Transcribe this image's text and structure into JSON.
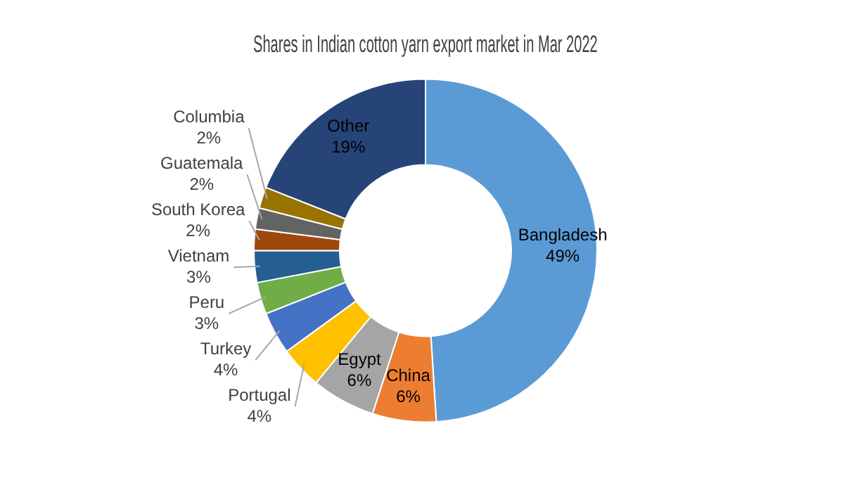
{
  "chart_data": {
    "type": "donut",
    "title": "Shares in Indian cotton yarn export market in Mar 2022",
    "categories": [
      "Bangladesh",
      "China",
      "Egypt",
      "Portugal",
      "Turkey",
      "Peru",
      "Vietnam",
      "South Korea",
      "Guatemala",
      "Columbia",
      "Other"
    ],
    "values": [
      49,
      6,
      6,
      4,
      4,
      3,
      3,
      2,
      2,
      2,
      19
    ],
    "colors": [
      "#5b9bd5",
      "#ed7d31",
      "#a5a5a5",
      "#ffc000",
      "#4472c4",
      "#70ad47",
      "#255e91",
      "#9e480e",
      "#636363",
      "#997300",
      "#264478"
    ],
    "value_labels": [
      "49%",
      "6%",
      "6%",
      "4%",
      "4%",
      "3%",
      "3%",
      "2%",
      "2%",
      "2%",
      "19%"
    ],
    "legend": false
  }
}
